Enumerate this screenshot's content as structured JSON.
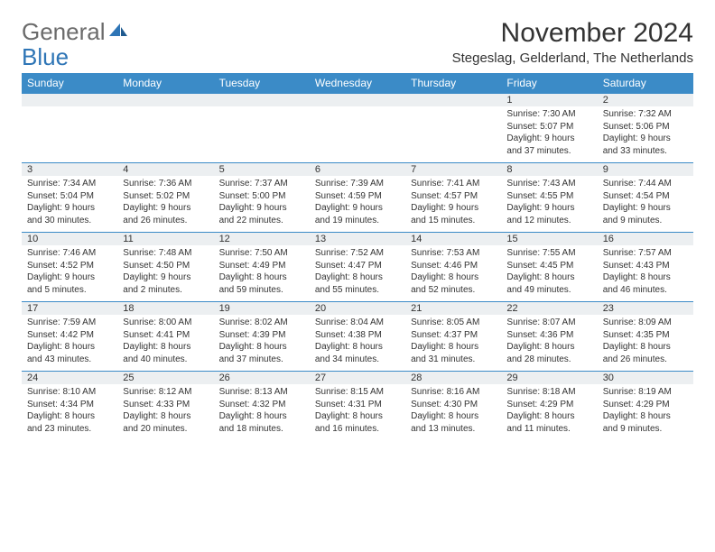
{
  "logo": {
    "text1": "General",
    "text2": "Blue"
  },
  "title": "November 2024",
  "location": "Stegeslag, Gelderland, The Netherlands",
  "colors": {
    "header_bg": "#3b8bc7",
    "band_bg": "#eceff1",
    "rule": "#3b8bc7",
    "text": "#333333",
    "logo_gray": "#6b6b6b",
    "logo_blue": "#2e75b6"
  },
  "day_names": [
    "Sunday",
    "Monday",
    "Tuesday",
    "Wednesday",
    "Thursday",
    "Friday",
    "Saturday"
  ],
  "weeks": [
    [
      {
        "num": "",
        "sunrise": "",
        "sunset": "",
        "daylight": ""
      },
      {
        "num": "",
        "sunrise": "",
        "sunset": "",
        "daylight": ""
      },
      {
        "num": "",
        "sunrise": "",
        "sunset": "",
        "daylight": ""
      },
      {
        "num": "",
        "sunrise": "",
        "sunset": "",
        "daylight": ""
      },
      {
        "num": "",
        "sunrise": "",
        "sunset": "",
        "daylight": ""
      },
      {
        "num": "1",
        "sunrise": "Sunrise: 7:30 AM",
        "sunset": "Sunset: 5:07 PM",
        "daylight": "Daylight: 9 hours and 37 minutes."
      },
      {
        "num": "2",
        "sunrise": "Sunrise: 7:32 AM",
        "sunset": "Sunset: 5:06 PM",
        "daylight": "Daylight: 9 hours and 33 minutes."
      }
    ],
    [
      {
        "num": "3",
        "sunrise": "Sunrise: 7:34 AM",
        "sunset": "Sunset: 5:04 PM",
        "daylight": "Daylight: 9 hours and 30 minutes."
      },
      {
        "num": "4",
        "sunrise": "Sunrise: 7:36 AM",
        "sunset": "Sunset: 5:02 PM",
        "daylight": "Daylight: 9 hours and 26 minutes."
      },
      {
        "num": "5",
        "sunrise": "Sunrise: 7:37 AM",
        "sunset": "Sunset: 5:00 PM",
        "daylight": "Daylight: 9 hours and 22 minutes."
      },
      {
        "num": "6",
        "sunrise": "Sunrise: 7:39 AM",
        "sunset": "Sunset: 4:59 PM",
        "daylight": "Daylight: 9 hours and 19 minutes."
      },
      {
        "num": "7",
        "sunrise": "Sunrise: 7:41 AM",
        "sunset": "Sunset: 4:57 PM",
        "daylight": "Daylight: 9 hours and 15 minutes."
      },
      {
        "num": "8",
        "sunrise": "Sunrise: 7:43 AM",
        "sunset": "Sunset: 4:55 PM",
        "daylight": "Daylight: 9 hours and 12 minutes."
      },
      {
        "num": "9",
        "sunrise": "Sunrise: 7:44 AM",
        "sunset": "Sunset: 4:54 PM",
        "daylight": "Daylight: 9 hours and 9 minutes."
      }
    ],
    [
      {
        "num": "10",
        "sunrise": "Sunrise: 7:46 AM",
        "sunset": "Sunset: 4:52 PM",
        "daylight": "Daylight: 9 hours and 5 minutes."
      },
      {
        "num": "11",
        "sunrise": "Sunrise: 7:48 AM",
        "sunset": "Sunset: 4:50 PM",
        "daylight": "Daylight: 9 hours and 2 minutes."
      },
      {
        "num": "12",
        "sunrise": "Sunrise: 7:50 AM",
        "sunset": "Sunset: 4:49 PM",
        "daylight": "Daylight: 8 hours and 59 minutes."
      },
      {
        "num": "13",
        "sunrise": "Sunrise: 7:52 AM",
        "sunset": "Sunset: 4:47 PM",
        "daylight": "Daylight: 8 hours and 55 minutes."
      },
      {
        "num": "14",
        "sunrise": "Sunrise: 7:53 AM",
        "sunset": "Sunset: 4:46 PM",
        "daylight": "Daylight: 8 hours and 52 minutes."
      },
      {
        "num": "15",
        "sunrise": "Sunrise: 7:55 AM",
        "sunset": "Sunset: 4:45 PM",
        "daylight": "Daylight: 8 hours and 49 minutes."
      },
      {
        "num": "16",
        "sunrise": "Sunrise: 7:57 AM",
        "sunset": "Sunset: 4:43 PM",
        "daylight": "Daylight: 8 hours and 46 minutes."
      }
    ],
    [
      {
        "num": "17",
        "sunrise": "Sunrise: 7:59 AM",
        "sunset": "Sunset: 4:42 PM",
        "daylight": "Daylight: 8 hours and 43 minutes."
      },
      {
        "num": "18",
        "sunrise": "Sunrise: 8:00 AM",
        "sunset": "Sunset: 4:41 PM",
        "daylight": "Daylight: 8 hours and 40 minutes."
      },
      {
        "num": "19",
        "sunrise": "Sunrise: 8:02 AM",
        "sunset": "Sunset: 4:39 PM",
        "daylight": "Daylight: 8 hours and 37 minutes."
      },
      {
        "num": "20",
        "sunrise": "Sunrise: 8:04 AM",
        "sunset": "Sunset: 4:38 PM",
        "daylight": "Daylight: 8 hours and 34 minutes."
      },
      {
        "num": "21",
        "sunrise": "Sunrise: 8:05 AM",
        "sunset": "Sunset: 4:37 PM",
        "daylight": "Daylight: 8 hours and 31 minutes."
      },
      {
        "num": "22",
        "sunrise": "Sunrise: 8:07 AM",
        "sunset": "Sunset: 4:36 PM",
        "daylight": "Daylight: 8 hours and 28 minutes."
      },
      {
        "num": "23",
        "sunrise": "Sunrise: 8:09 AM",
        "sunset": "Sunset: 4:35 PM",
        "daylight": "Daylight: 8 hours and 26 minutes."
      }
    ],
    [
      {
        "num": "24",
        "sunrise": "Sunrise: 8:10 AM",
        "sunset": "Sunset: 4:34 PM",
        "daylight": "Daylight: 8 hours and 23 minutes."
      },
      {
        "num": "25",
        "sunrise": "Sunrise: 8:12 AM",
        "sunset": "Sunset: 4:33 PM",
        "daylight": "Daylight: 8 hours and 20 minutes."
      },
      {
        "num": "26",
        "sunrise": "Sunrise: 8:13 AM",
        "sunset": "Sunset: 4:32 PM",
        "daylight": "Daylight: 8 hours and 18 minutes."
      },
      {
        "num": "27",
        "sunrise": "Sunrise: 8:15 AM",
        "sunset": "Sunset: 4:31 PM",
        "daylight": "Daylight: 8 hours and 16 minutes."
      },
      {
        "num": "28",
        "sunrise": "Sunrise: 8:16 AM",
        "sunset": "Sunset: 4:30 PM",
        "daylight": "Daylight: 8 hours and 13 minutes."
      },
      {
        "num": "29",
        "sunrise": "Sunrise: 8:18 AM",
        "sunset": "Sunset: 4:29 PM",
        "daylight": "Daylight: 8 hours and 11 minutes."
      },
      {
        "num": "30",
        "sunrise": "Sunrise: 8:19 AM",
        "sunset": "Sunset: 4:29 PM",
        "daylight": "Daylight: 8 hours and 9 minutes."
      }
    ]
  ]
}
